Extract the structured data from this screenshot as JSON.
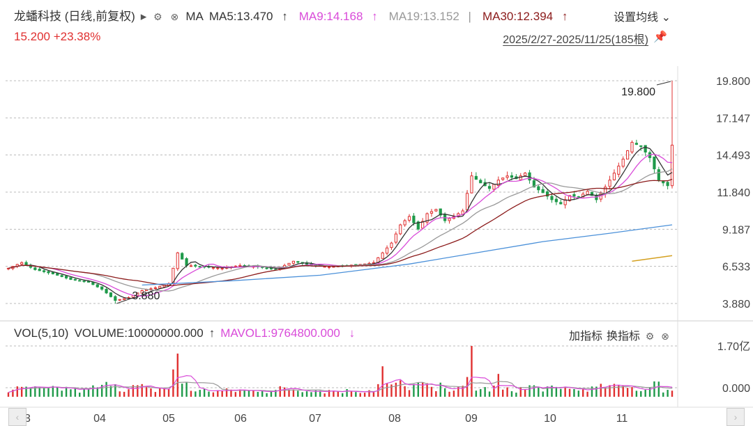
{
  "header": {
    "name": "龙蟠科技 (日线,前复权)",
    "play_icon": "▸",
    "ma_label": "MA",
    "ma5": "MA5:13.470",
    "ma9": "MA9:14.168",
    "ma19": "MA19:13.152",
    "ma30": "MA30:12.394",
    "up_arrow": "↑",
    "setup_label": "设置均线",
    "setup_caret": "⌄",
    "icons": [
      "gear-icon",
      "close-icon"
    ]
  },
  "price": {
    "last": "15.200",
    "change_pct": "+23.38%"
  },
  "range_label": "2025/2/27-2025/11/25(185根)",
  "pin_icon": "pin-icon",
  "volume_header": {
    "vol": "VOL(5,10)",
    "volume": "VOLUME:10000000.000",
    "up_arrow": "↑",
    "mavol1": "MAVOL1:9764800.000",
    "down_arrow": "↓",
    "add_indicator": "加指标",
    "switch_indicator": "换指标"
  },
  "colors": {
    "up": "#e03030",
    "down": "#1f9a4a",
    "ma5": "#333333",
    "ma9": "#d94bd9",
    "ma19": "#999999",
    "ma30": "#8b1a1a",
    "ma60": "#4a90d9",
    "ma120": "#d4a020",
    "grid": "#bbbbbb"
  },
  "chart_data": {
    "type": "candlestick",
    "price_axis": {
      "ticks": [
        "19.800",
        "17.147",
        "14.493",
        "11.840",
        "9.187",
        "6.533",
        "3.880"
      ],
      "ylim": [
        3.88,
        19.8
      ]
    },
    "x_ticks": [
      "03",
      "04",
      "05",
      "06",
      "07",
      "08",
      "09",
      "10",
      "11"
    ],
    "annotations": {
      "high": "19.800",
      "low": "3.880"
    },
    "volume_axis": {
      "ticks": [
        "1.70亿",
        "0.000"
      ]
    },
    "price_path": [
      [
        0,
        6.4
      ],
      [
        3,
        6.8
      ],
      [
        6,
        6.3
      ],
      [
        10,
        6.0
      ],
      [
        14,
        5.6
      ],
      [
        18,
        5.4
      ],
      [
        21,
        4.9
      ],
      [
        24,
        4.1
      ],
      [
        27,
        4.3
      ],
      [
        30,
        4.8
      ],
      [
        33,
        5.0
      ],
      [
        36,
        5.3
      ],
      [
        38,
        7.5
      ],
      [
        40,
        6.6
      ],
      [
        44,
        6.5
      ],
      [
        48,
        6.4
      ],
      [
        52,
        6.6
      ],
      [
        56,
        6.5
      ],
      [
        60,
        6.3
      ],
      [
        64,
        6.9
      ],
      [
        68,
        6.6
      ],
      [
        72,
        6.5
      ],
      [
        76,
        6.6
      ],
      [
        80,
        6.7
      ],
      [
        82,
        6.8
      ],
      [
        84,
        7.5
      ],
      [
        86,
        8.2
      ],
      [
        88,
        9.5
      ],
      [
        90,
        10.1
      ],
      [
        92,
        9.2
      ],
      [
        94,
        10.3
      ],
      [
        96,
        10.6
      ],
      [
        98,
        9.8
      ],
      [
        100,
        10.1
      ],
      [
        102,
        10.5
      ],
      [
        104,
        13.0
      ],
      [
        106,
        12.5
      ],
      [
        108,
        12.1
      ],
      [
        110,
        12.7
      ],
      [
        112,
        13.0
      ],
      [
        114,
        12.8
      ],
      [
        116,
        13.2
      ],
      [
        118,
        12.2
      ],
      [
        120,
        11.8
      ],
      [
        122,
        11.3
      ],
      [
        124,
        11.0
      ],
      [
        126,
        11.6
      ],
      [
        128,
        11.5
      ],
      [
        130,
        11.9
      ],
      [
        132,
        11.3
      ],
      [
        134,
        12.2
      ],
      [
        136,
        13.2
      ],
      [
        138,
        14.2
      ],
      [
        140,
        15.4
      ],
      [
        142,
        15.1
      ],
      [
        144,
        14.3
      ],
      [
        146,
        12.7
      ],
      [
        148,
        12.3
      ],
      [
        149,
        15.2
      ]
    ],
    "ma_series": [
      {
        "name": "MA5",
        "key": "ma5",
        "values": "smoothed",
        "window": 5
      },
      {
        "name": "MA9",
        "key": "ma9",
        "window": 9
      },
      {
        "name": "MA19",
        "key": "ma19",
        "window": 19
      },
      {
        "name": "MA30",
        "key": "ma30",
        "window": 30
      }
    ],
    "ma60_path": [
      [
        30,
        5.2
      ],
      [
        50,
        5.5
      ],
      [
        70,
        5.9
      ],
      [
        90,
        6.7
      ],
      [
        105,
        7.5
      ],
      [
        120,
        8.3
      ],
      [
        135,
        8.9
      ],
      [
        149,
        9.5
      ]
    ],
    "ma120_path": [
      [
        140,
        6.9
      ],
      [
        149,
        7.3
      ]
    ],
    "volume_values_note": "relative heights 0..1 of 1.70亿 scale",
    "volume_spikes": [
      [
        38,
        0.85
      ],
      [
        84,
        0.6
      ],
      [
        104,
        1.0
      ],
      [
        110,
        0.45
      ]
    ]
  }
}
